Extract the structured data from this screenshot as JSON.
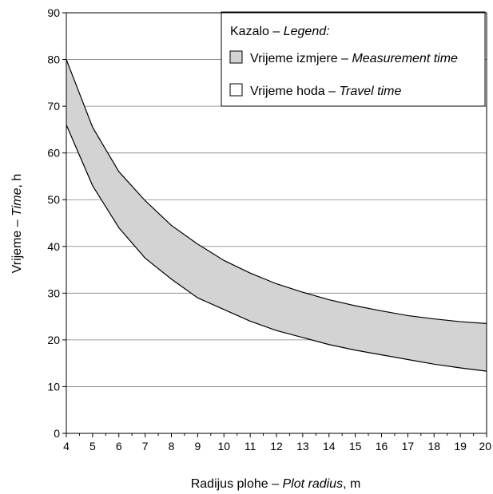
{
  "chart_data": {
    "type": "area",
    "x": [
      4,
      5,
      6,
      7,
      8,
      9,
      10,
      11,
      12,
      13,
      14,
      15,
      16,
      17,
      18,
      19,
      20
    ],
    "series": [
      {
        "name": "Vrijeme izmjere – Measurement time",
        "role": "band-upper",
        "color": "#d3d3d3",
        "values": [
          80,
          65.5,
          56,
          49.8,
          44.5,
          40.5,
          37,
          34.3,
          32,
          30.2,
          28.6,
          27.3,
          26.2,
          25.2,
          24.5,
          23.9,
          23.5
        ]
      },
      {
        "name": "Vrijeme hoda – Travel time",
        "role": "band-lower",
        "color": "#ffffff",
        "values": [
          66,
          53,
          44,
          37.5,
          33,
          29,
          26.5,
          24,
          22,
          20.5,
          19,
          17.8,
          16.8,
          15.8,
          14.8,
          14,
          13.3
        ]
      }
    ],
    "xlim": [
      4,
      20
    ],
    "ylim": [
      0,
      90
    ],
    "xticks": [
      "4",
      "5",
      "6",
      "7",
      "8",
      "9",
      "10",
      "11",
      "12",
      "13",
      "14",
      "15",
      "16",
      "17",
      "18",
      "19",
      "20"
    ],
    "yticks": [
      "0",
      "10",
      "20",
      "30",
      "40",
      "50",
      "60",
      "70",
      "80",
      "90"
    ],
    "xlabel": {
      "plain": "Radijus plohe – ",
      "italic": "Plot radius",
      "suffix": ", m"
    },
    "ylabel": {
      "plain": "Vrijeme – ",
      "italic": "Time",
      "suffix": ", h"
    },
    "grid": "horizontal",
    "legend": {
      "position": "top-right",
      "title": {
        "plain": "Kazalo – ",
        "italic": "Legend:"
      },
      "entries": [
        {
          "plain": "Vrijeme izmjere – ",
          "italic": "Measurement time",
          "color": "#d3d3d3"
        },
        {
          "plain": "Vrijeme hoda – ",
          "italic": "Travel time",
          "color": "#ffffff"
        }
      ]
    }
  }
}
